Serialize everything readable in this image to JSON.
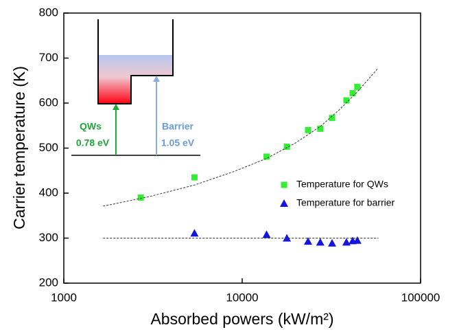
{
  "chart_data": {
    "type": "scatter",
    "xlabel": "Absorbed powers (kW/m²)",
    "ylabel": "Carrier temperature (K)",
    "xscale": "log",
    "xlim": [
      1000,
      100000
    ],
    "xticks": [
      1000,
      10000,
      100000
    ],
    "ylim": [
      200,
      800
    ],
    "yticks": [
      200,
      300,
      400,
      500,
      600,
      700,
      800
    ],
    "legend": "right",
    "series": [
      {
        "name": "Temperature for QWs",
        "color": "#33ee33",
        "marker": "square",
        "x": [
          2700,
          5400,
          13700,
          17800,
          23400,
          27400,
          31900,
          38400,
          41600,
          44200
        ],
        "values": [
          390,
          435,
          481,
          503,
          540,
          543,
          567,
          606,
          622,
          636
        ]
      },
      {
        "name": "Temperature for barrier",
        "color": "#1515e0",
        "marker": "triangle",
        "x": [
          5400,
          13700,
          17800,
          23400,
          27400,
          31900,
          38400,
          41600,
          44200
        ],
        "values": [
          311,
          308,
          300,
          293,
          291,
          289,
          291,
          294,
          295
        ]
      },
      {
        "color": "#333333",
        "marker": "dashed-line",
        "x": [
          1660,
          3000,
          5400,
          9000,
          13700,
          20000,
          27400,
          35000,
          44200,
          57300
        ],
        "values": [
          371,
          392,
          418,
          448,
          477,
          512,
          548,
          585,
          625,
          676
        ]
      },
      {
        "color": "#333333",
        "marker": "dashed-line",
        "x": [
          1660,
          58000
        ],
        "values": [
          300,
          300
        ]
      }
    ],
    "annotations": [
      "QWs",
      "0.78 eV",
      "Barrier",
      "1.05 eV"
    ]
  }
}
